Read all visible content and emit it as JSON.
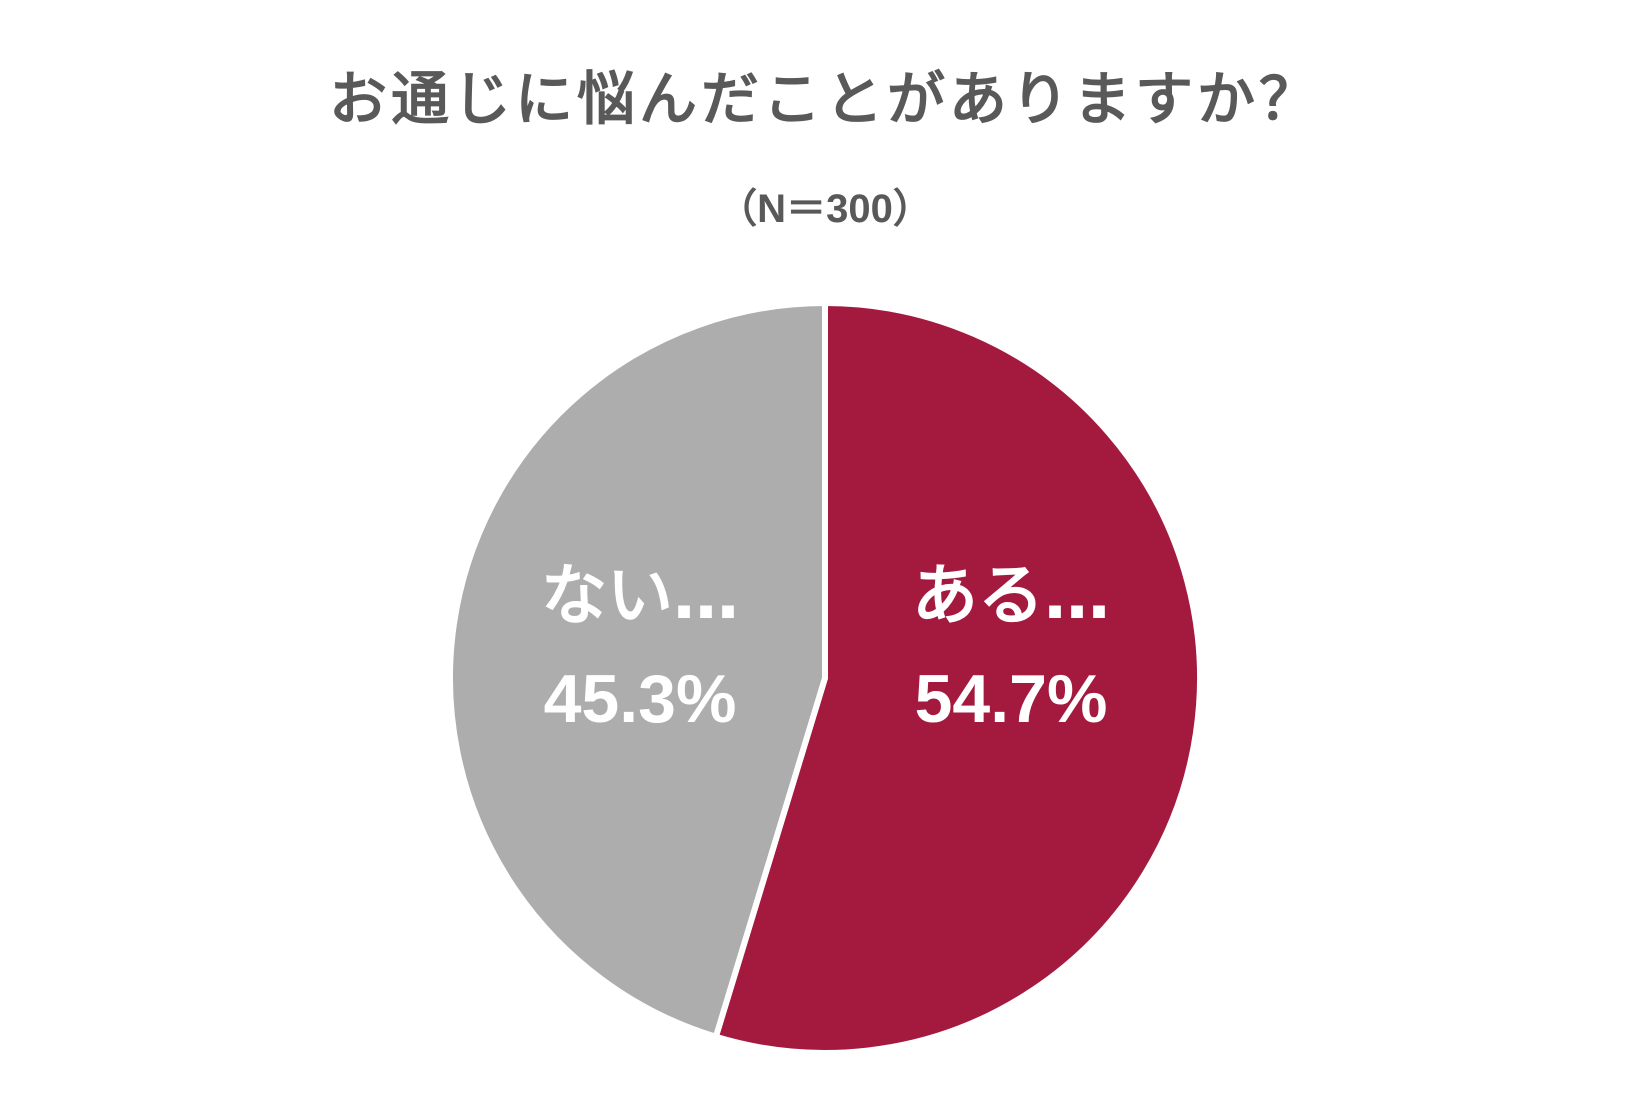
{
  "chart_data": {
    "type": "pie",
    "title": "お通じに悩んだことがありますか？",
    "subtitle": "（N＝300）",
    "slices": [
      {
        "label": "ある…",
        "value": 54.7,
        "value_text": "54.7%",
        "color": "#a41a3f"
      },
      {
        "label": "ない…",
        "value": 45.3,
        "value_text": "45.3%",
        "color": "#adadad"
      }
    ],
    "start": "12 o'clock",
    "direction": "clockwise",
    "legend": "none"
  }
}
